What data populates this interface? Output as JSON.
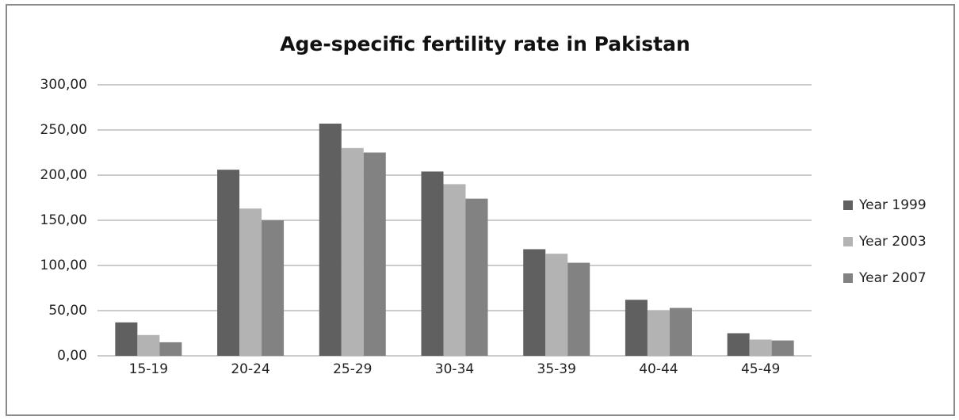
{
  "chart_data": {
    "type": "bar",
    "title": "Age-specific fertility rate in Pakistan",
    "categories": [
      "15-19",
      "20-24",
      "25-29",
      "30-34",
      "35-39",
      "40-44",
      "45-49"
    ],
    "series": [
      {
        "name": "Year 1999",
        "color": "#606060",
        "values": [
          37,
          206,
          257,
          204,
          118,
          62,
          25
        ]
      },
      {
        "name": "Year 2003",
        "color": "#b3b3b3",
        "values": [
          23,
          163,
          230,
          190,
          113,
          50,
          18
        ]
      },
      {
        "name": "Year 2007",
        "color": "#828282",
        "values": [
          15,
          150,
          225,
          174,
          103,
          53,
          17
        ]
      }
    ],
    "ylim": [
      0,
      300
    ],
    "yticks": [
      {
        "value": 0,
        "label": "0,00"
      },
      {
        "value": 50,
        "label": "50,00"
      },
      {
        "value": 100,
        "label": "100,00"
      },
      {
        "value": 150,
        "label": "150,00"
      },
      {
        "value": 200,
        "label": "200,00"
      },
      {
        "value": 250,
        "label": "250,00"
      },
      {
        "value": 300,
        "label": "300,00"
      }
    ],
    "grid": true,
    "legend": "right"
  }
}
